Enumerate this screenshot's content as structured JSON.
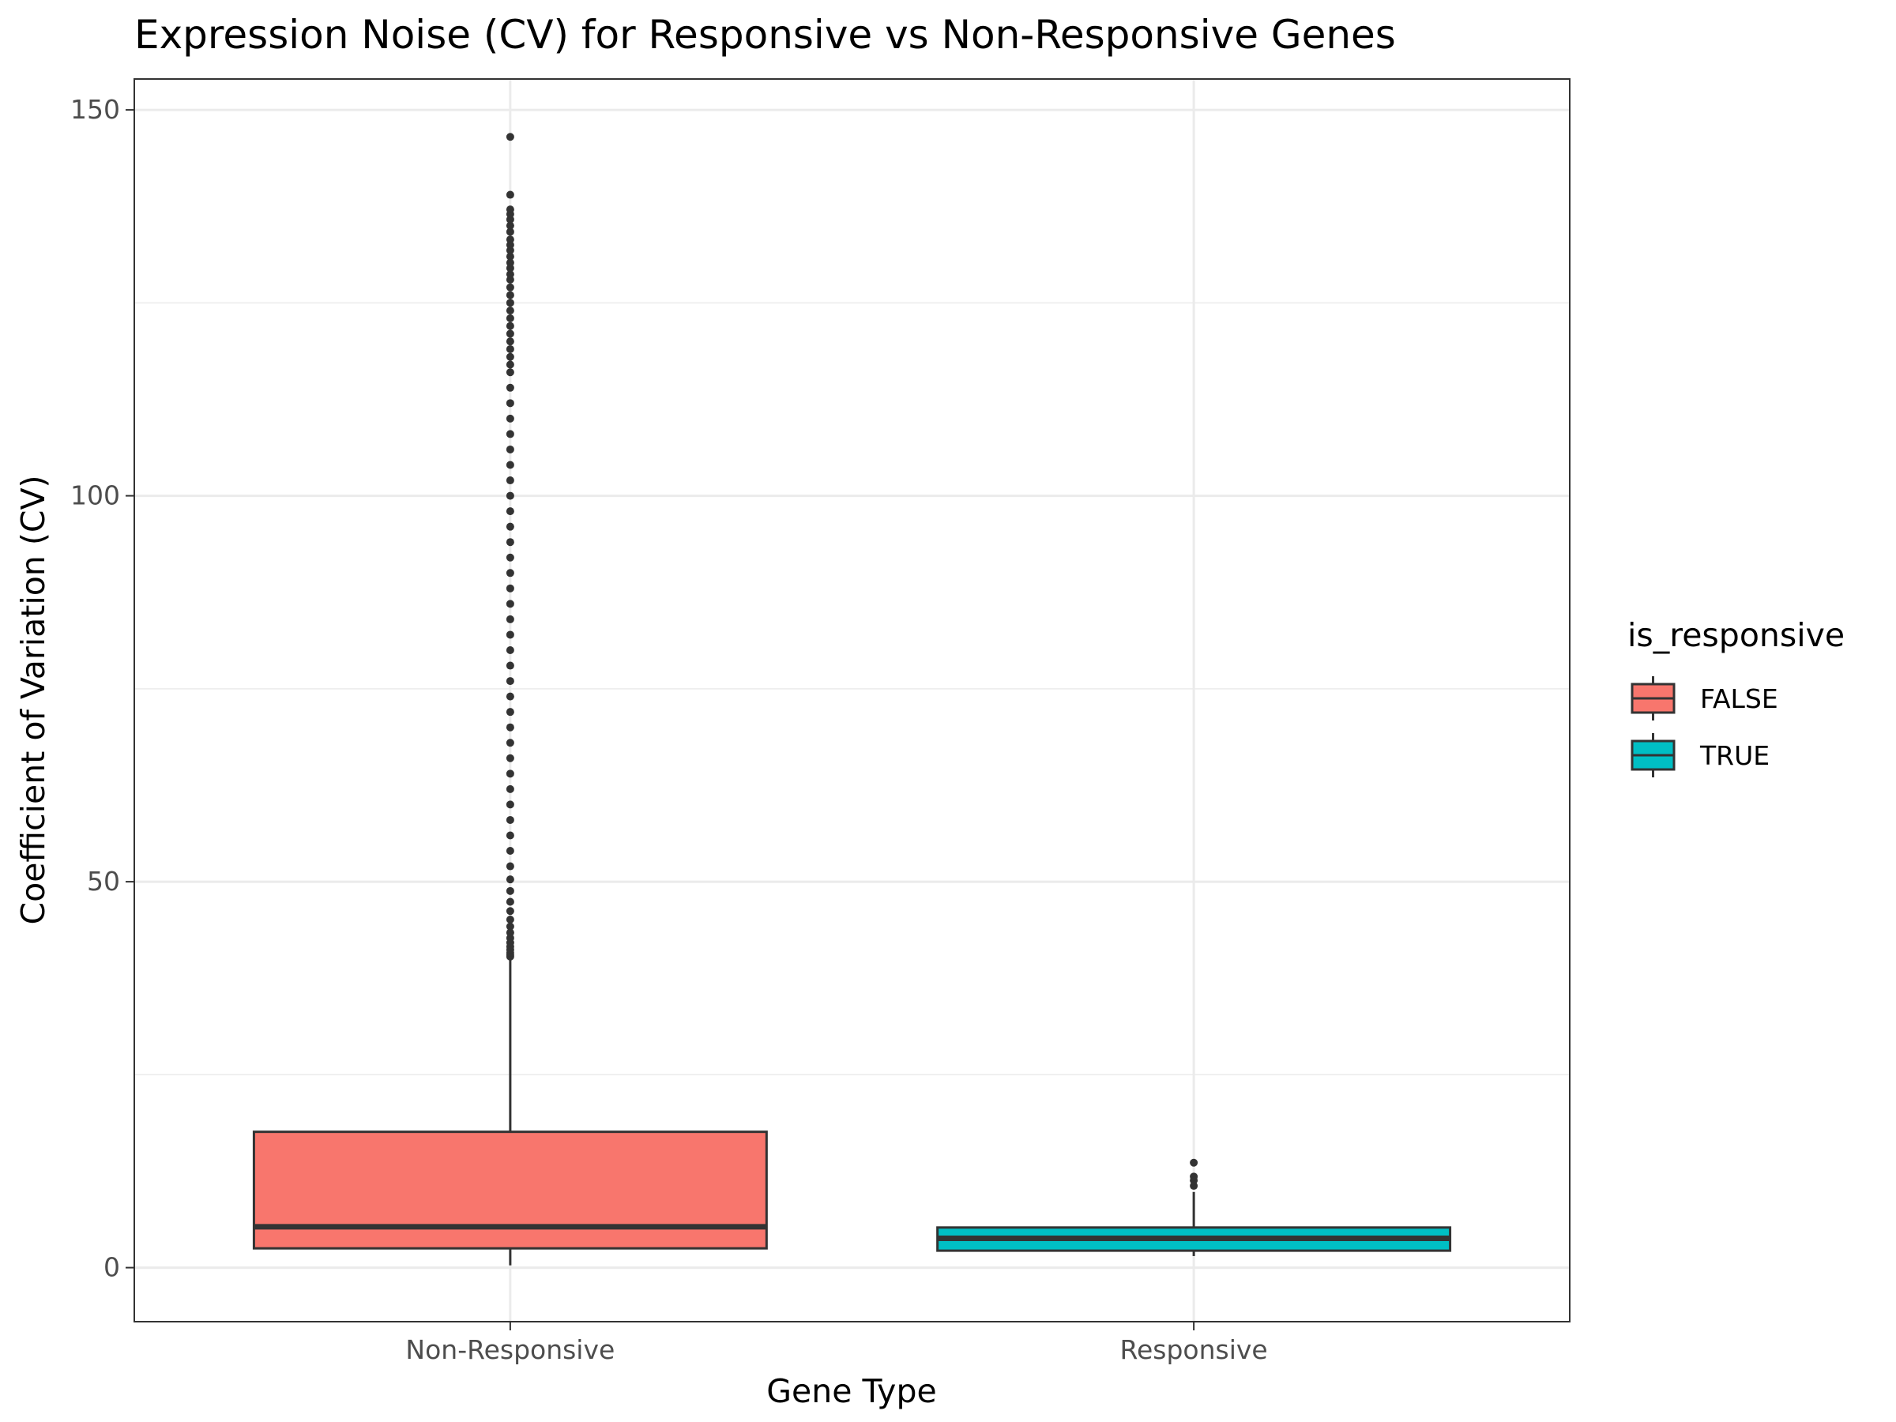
{
  "chart_data": {
    "type": "boxplot",
    "title": "Expression Noise (CV) for Responsive vs Non-Responsive Genes",
    "xlabel": "Gene Type",
    "ylabel": "Coefficient of Variation (CV)",
    "ylim": [
      -7,
      154
    ],
    "yticks": [
      0,
      50,
      100,
      150
    ],
    "grid": true,
    "legend": {
      "title": "is_responsive",
      "position": "right",
      "entries": [
        {
          "label": "FALSE",
          "color": "#F8766D"
        },
        {
          "label": "TRUE",
          "color": "#00BFC4"
        }
      ]
    },
    "categories": [
      "Non-Responsive",
      "Responsive"
    ],
    "series": [
      {
        "legend_label": "FALSE",
        "category": "Non-Responsive",
        "color": "#F8766D",
        "min": 0.3,
        "q1": 2.5,
        "median": 5.3,
        "q3": 17.6,
        "whisker_high": 40.2,
        "outliers": [
          40.3,
          40.5,
          40.8,
          41.2,
          41.6,
          42.1,
          42.7,
          43.4,
          44.2,
          45.1,
          46.2,
          47.4,
          48.8,
          50.3,
          52.0,
          54.0,
          56.0,
          58.0,
          60.0,
          62.0,
          64.0,
          66.0,
          68.0,
          70.0,
          72.0,
          74.0,
          76.0,
          78.0,
          80.0,
          82.0,
          84.0,
          86.0,
          88.0,
          90.0,
          92.0,
          94.0,
          96.0,
          98.0,
          100.0,
          102.0,
          104.0,
          106.0,
          108.0,
          110.0,
          112.0,
          114.0,
          116.0,
          117.0,
          118.0,
          119.0,
          120.0,
          121.0,
          122.0,
          123.0,
          124.0,
          125.0,
          126.0,
          127.0,
          128.0,
          128.7,
          129.5,
          130.2,
          131.0,
          131.8,
          132.5,
          133.2,
          134.2,
          135.0,
          135.8,
          136.5,
          137.1,
          139.0,
          146.5
        ]
      },
      {
        "legend_label": "TRUE",
        "category": "Responsive",
        "color": "#00BFC4",
        "min": 1.5,
        "q1": 2.2,
        "median": 3.8,
        "q3": 5.2,
        "whisker_high": 9.8,
        "outliers": [
          10.6,
          11.3,
          11.8,
          13.6
        ]
      }
    ]
  }
}
